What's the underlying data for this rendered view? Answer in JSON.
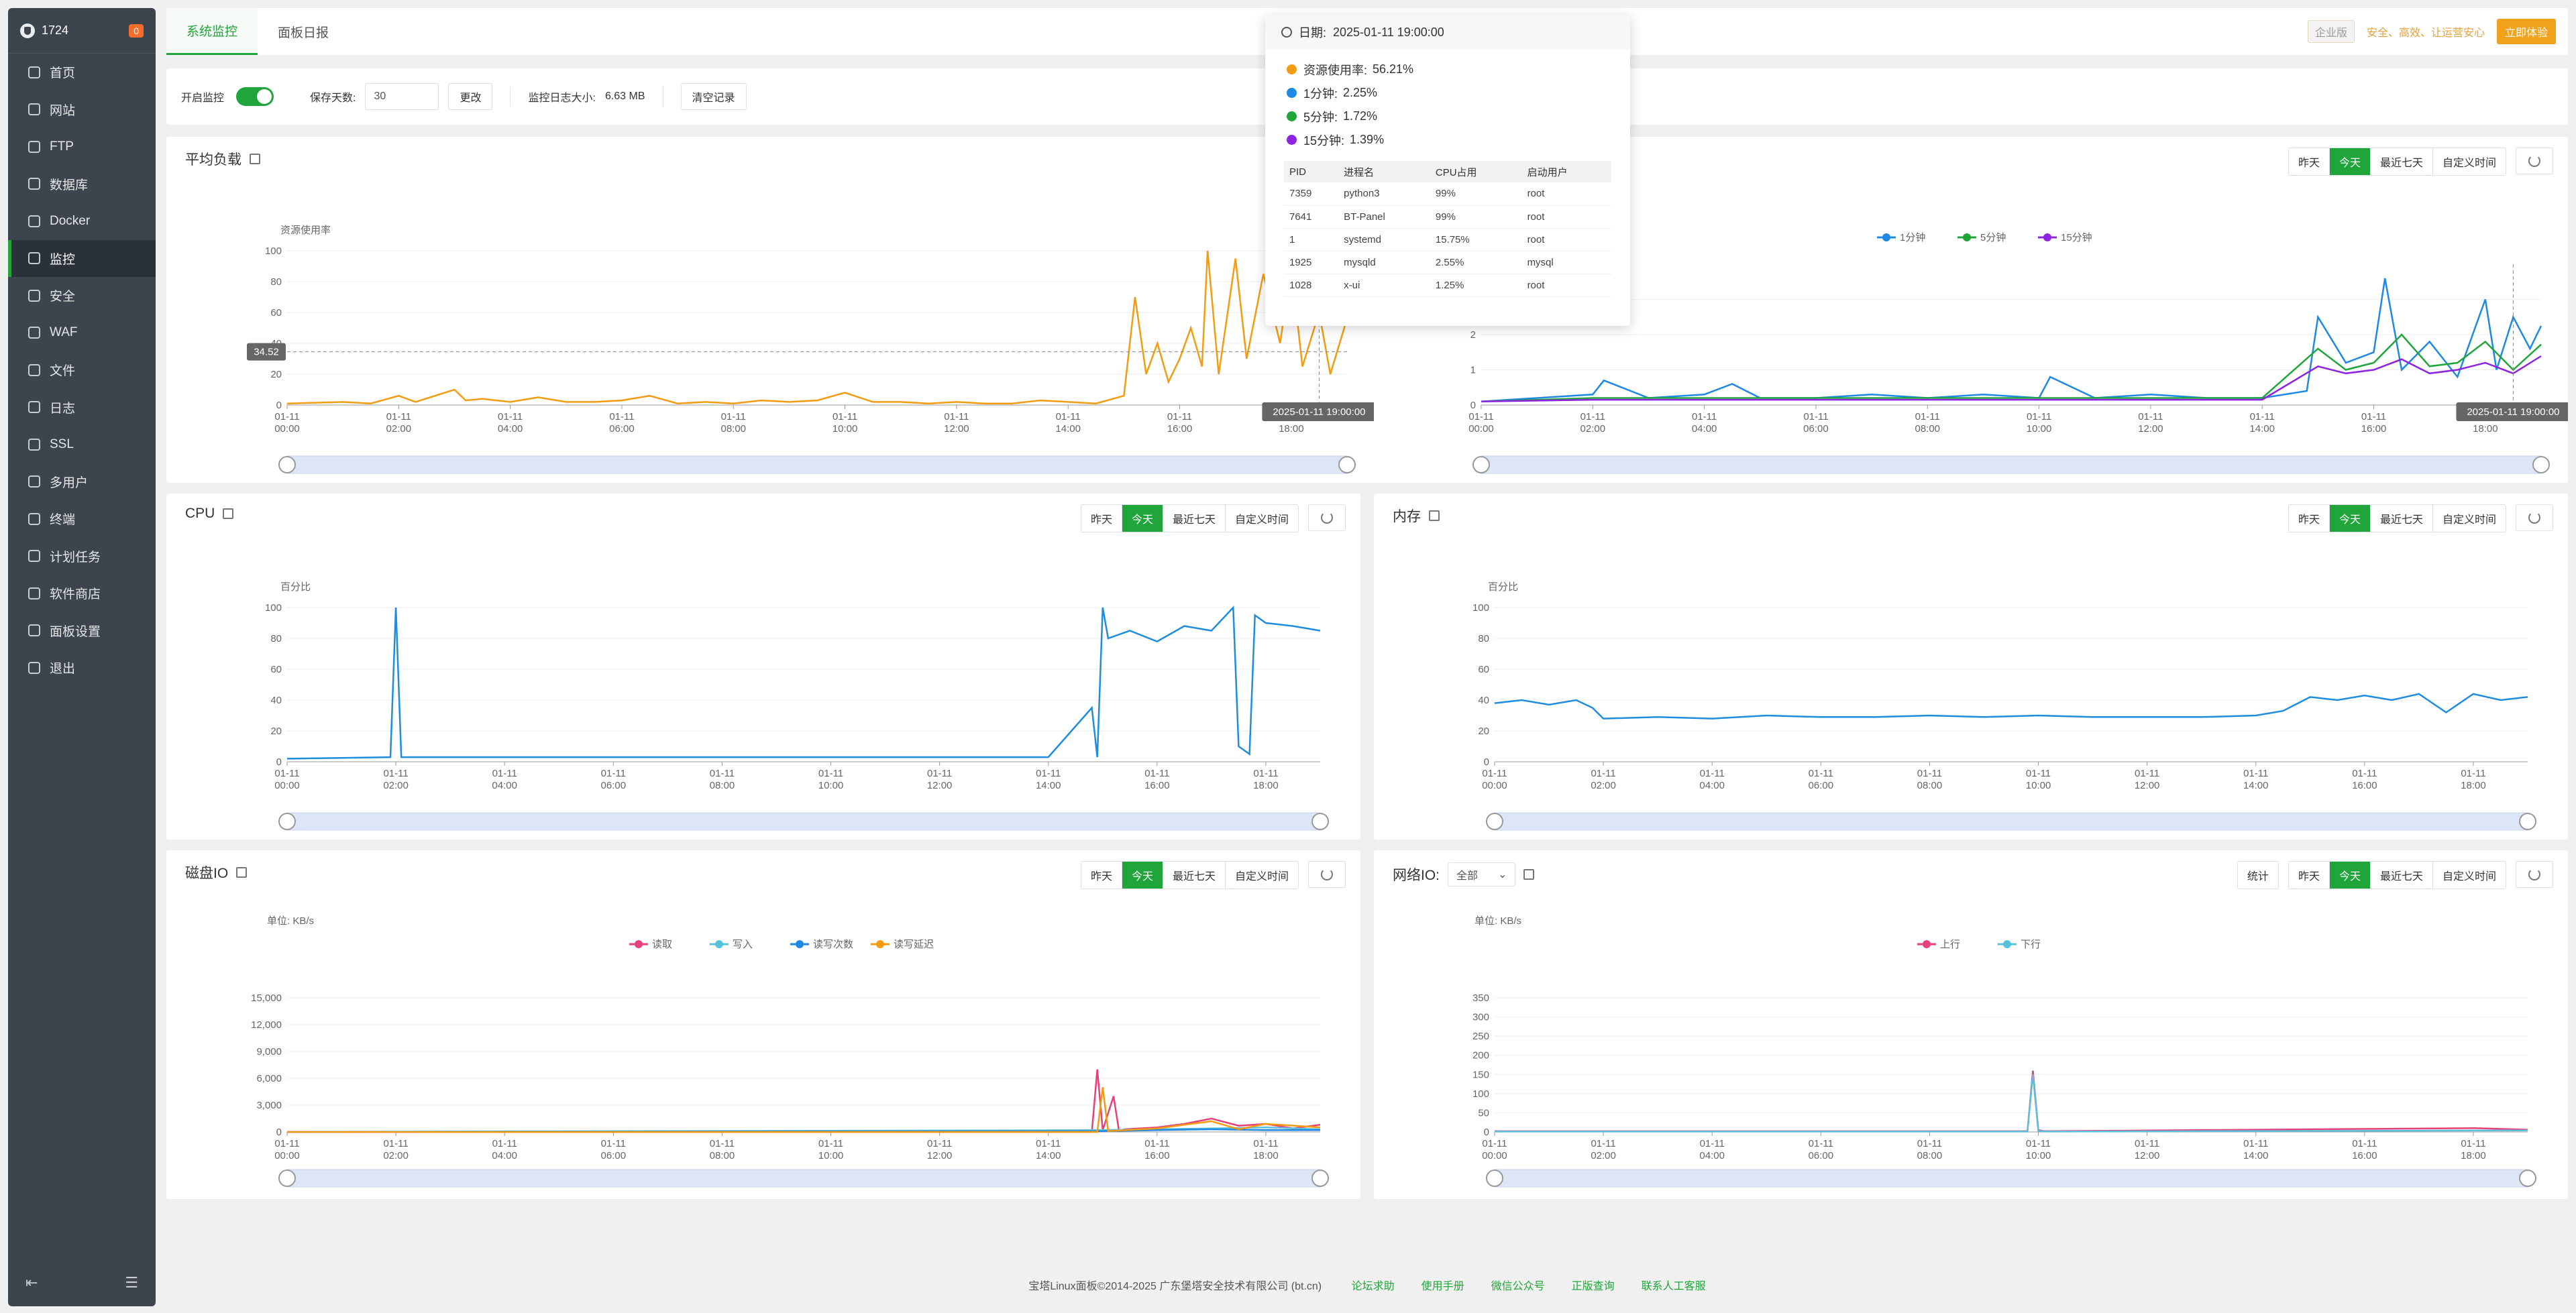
{
  "sidebar": {
    "server_count": "1724",
    "badge": "0",
    "items": [
      {
        "label": "首页"
      },
      {
        "label": "网站"
      },
      {
        "label": "FTP"
      },
      {
        "label": "数据库"
      },
      {
        "label": "Docker"
      },
      {
        "label": "监控",
        "active": true
      },
      {
        "label": "安全"
      },
      {
        "label": "WAF"
      },
      {
        "label": "文件"
      },
      {
        "label": "日志"
      },
      {
        "label": "SSL"
      },
      {
        "label": "多用户"
      },
      {
        "label": "终端"
      },
      {
        "label": "计划任务"
      },
      {
        "label": "软件商店"
      },
      {
        "label": "面板设置"
      },
      {
        "label": "退出"
      }
    ]
  },
  "header": {
    "tabs": [
      {
        "label": "系统监控"
      },
      {
        "label": "面板日报"
      }
    ],
    "enterprise": "企业版",
    "slogan": "安全、高效、让运营安心",
    "try_button": "立即体验"
  },
  "controls": {
    "enable_label": "开启监控",
    "keep_days_label": "保存天数:",
    "keep_days_value": "30",
    "change_button": "更改",
    "log_size_label": "监控日志大小:",
    "log_size_value": "6.63 MB",
    "clear_button": "清空记录"
  },
  "range_buttons": [
    "昨天",
    "今天",
    "最近七天",
    "自定义时间"
  ],
  "active_range": "今天",
  "stat_button": "统计",
  "panels": {
    "load": {
      "title": "平均负载"
    },
    "cpu": {
      "title": "CPU"
    },
    "memory": {
      "title": "内存"
    },
    "disk": {
      "title": "磁盘IO"
    },
    "network": {
      "title": "网络IO:",
      "select_value": "全部"
    }
  },
  "tooltip": {
    "date_label": "日期:",
    "date": "2025-01-11 19:00:00",
    "lines": [
      {
        "label": "资源使用率:",
        "value": "56.21%",
        "color": "#f39c12"
      },
      {
        "label": "1分钟:",
        "value": "2.25%",
        "color": "#1e88e5"
      },
      {
        "label": "5分钟:",
        "value": "1.72%",
        "color": "#20a53a"
      },
      {
        "label": "15分钟:",
        "value": "1.39%",
        "color": "#8e24e0"
      }
    ],
    "table_headers": [
      "PID",
      "进程名",
      "CPU占用",
      "启动用户"
    ],
    "processes": [
      [
        "7359",
        "python3",
        "99%",
        "root"
      ],
      [
        "7641",
        "BT-Panel",
        "99%",
        "root"
      ],
      [
        "1",
        "systemd",
        "15.75%",
        "root"
      ],
      [
        "1925",
        "mysqld",
        "2.55%",
        "mysql"
      ],
      [
        "1028",
        "x-ui",
        "1.25%",
        "root"
      ]
    ]
  },
  "footer": {
    "copyright": "宝塔Linux面板©2014-2025 广东堡塔安全技术有限公司 (bt.cn)",
    "links": [
      "论坛求助",
      "使用手册",
      "微信公众号",
      "正版查询",
      "联系人工客服"
    ]
  },
  "chart_data": [
    {
      "id": "load_resource",
      "type": "line",
      "ylabel": "资源使用率",
      "ylim": [
        0,
        100
      ],
      "yticks": [
        0,
        20,
        40,
        60,
        80,
        100
      ],
      "pointer_value": "34.52",
      "crosshair_time": "2025-01-11 19:00:00",
      "xticks": [
        "01-11 00:00",
        "01-11 02:00",
        "01-11 04:00",
        "01-11 06:00",
        "01-11 08:00",
        "01-11 10:00",
        "01-11 12:00",
        "01-11 14:00",
        "01-11 16:00",
        "01-11 18:00"
      ],
      "series": [
        {
          "color": "#f39c12",
          "x": [
            0,
            1,
            1.5,
            2,
            2.3,
            3,
            3.2,
            3.5,
            4,
            4.5,
            5,
            5.5,
            6,
            6.5,
            7,
            7.5,
            8,
            8.5,
            9,
            9.5,
            10,
            10.5,
            11,
            11.5,
            12,
            12.5,
            13,
            13.5,
            14,
            14.5,
            15,
            15.2,
            15.4,
            15.6,
            15.8,
            16,
            16.2,
            16.4,
            16.5,
            16.7,
            17,
            17.2,
            17.5,
            17.8,
            18,
            18.2,
            18.5,
            18.7,
            19
          ],
          "y": [
            1,
            2,
            1,
            6,
            2,
            10,
            3,
            4,
            2,
            5,
            2,
            2,
            3,
            6,
            1,
            2,
            1,
            3,
            2,
            3,
            8,
            2,
            2,
            1,
            2,
            1,
            1,
            3,
            2,
            1,
            6,
            70,
            20,
            40,
            15,
            30,
            50,
            25,
            100,
            20,
            95,
            30,
            85,
            40,
            90,
            25,
            60,
            20,
            56
          ]
        }
      ]
    },
    {
      "id": "load_avg",
      "type": "line",
      "legend": [
        "1分钟",
        "5分钟",
        "15分钟"
      ],
      "ylim": [
        0,
        4
      ],
      "yticks": [
        0,
        1,
        2,
        3
      ],
      "crosshair_time": "2025-01-11 19:00:00",
      "xticks": [
        "01-11 00:00",
        "01-11 02:00",
        "01-11 04:00",
        "01-11 06:00",
        "01-11 08:00",
        "01-11 10:00",
        "01-11 12:00",
        "01-11 14:00",
        "01-11 16:00",
        "01-11 18:00"
      ],
      "series": [
        {
          "name": "1分钟",
          "color": "#1e88e5",
          "x": [
            0,
            1,
            2,
            2.2,
            3,
            4,
            4.5,
            5,
            6,
            7,
            8,
            9,
            10,
            10.2,
            11,
            12,
            13,
            14,
            14.8,
            15,
            15.5,
            16,
            16.2,
            16.5,
            17,
            17.5,
            18,
            18.2,
            18.5,
            18.8,
            19
          ],
          "y": [
            0.1,
            0.2,
            0.3,
            0.7,
            0.2,
            0.3,
            0.6,
            0.2,
            0.2,
            0.3,
            0.2,
            0.3,
            0.2,
            0.8,
            0.2,
            0.3,
            0.2,
            0.2,
            0.4,
            2.5,
            1.2,
            1.5,
            3.6,
            1.0,
            1.8,
            0.8,
            3.0,
            1.0,
            2.5,
            1.6,
            2.25
          ]
        },
        {
          "name": "5分钟",
          "color": "#20a53a",
          "x": [
            0,
            2,
            4,
            6,
            8,
            10,
            12,
            14,
            15,
            15.5,
            16,
            16.5,
            17,
            17.5,
            18,
            18.5,
            19
          ],
          "y": [
            0.1,
            0.2,
            0.2,
            0.2,
            0.2,
            0.2,
            0.2,
            0.2,
            1.6,
            1.0,
            1.2,
            2.0,
            1.1,
            1.2,
            1.8,
            1.0,
            1.72
          ]
        },
        {
          "name": "15分钟",
          "color": "#8e24e0",
          "x": [
            0,
            2,
            4,
            6,
            8,
            10,
            12,
            14,
            15,
            15.5,
            16,
            16.5,
            17,
            17.5,
            18,
            18.5,
            19
          ],
          "y": [
            0.1,
            0.15,
            0.15,
            0.15,
            0.15,
            0.15,
            0.15,
            0.15,
            1.1,
            0.9,
            1.0,
            1.3,
            0.9,
            1.0,
            1.2,
            0.9,
            1.39
          ]
        }
      ]
    },
    {
      "id": "cpu",
      "type": "line",
      "ylabel": "百分比",
      "ylim": [
        0,
        100
      ],
      "yticks": [
        0,
        20,
        40,
        60,
        80,
        100
      ],
      "xticks": [
        "01-11 00:00",
        "01-11 02:00",
        "01-11 04:00",
        "01-11 06:00",
        "01-11 08:00",
        "01-11 10:00",
        "01-11 12:00",
        "01-11 14:00",
        "01-11 16:00",
        "01-11 18:00"
      ],
      "series": [
        {
          "color": "#1e8de0",
          "x": [
            0,
            1.9,
            2,
            2.1,
            3,
            4,
            5,
            6,
            7,
            8,
            9,
            10,
            11,
            12,
            13,
            14,
            14.8,
            14.9,
            15,
            15.1,
            15.5,
            16,
            16.5,
            17,
            17.4,
            17.5,
            17.7,
            17.8,
            18,
            18.5,
            19
          ],
          "y": [
            2,
            3,
            100,
            3,
            3,
            3,
            3,
            3,
            3,
            3,
            3,
            3,
            3,
            3,
            3,
            3,
            35,
            3,
            100,
            80,
            85,
            78,
            88,
            85,
            100,
            10,
            5,
            95,
            90,
            88,
            85
          ]
        }
      ]
    },
    {
      "id": "memory",
      "type": "line",
      "ylabel": "百分比",
      "ylim": [
        0,
        100
      ],
      "yticks": [
        0,
        20,
        40,
        60,
        80,
        100
      ],
      "xticks": [
        "01-11 00:00",
        "01-11 02:00",
        "01-11 04:00",
        "01-11 06:00",
        "01-11 08:00",
        "01-11 10:00",
        "01-11 12:00",
        "01-11 14:00",
        "01-11 16:00",
        "01-11 18:00"
      ],
      "series": [
        {
          "color": "#1e8de0",
          "x": [
            0,
            0.5,
            1,
            1.5,
            1.8,
            2,
            3,
            4,
            5,
            6,
            7,
            8,
            9,
            10,
            11,
            12,
            13,
            14,
            14.5,
            15,
            15.5,
            16,
            16.5,
            17,
            17.5,
            18,
            18.5,
            19
          ],
          "y": [
            38,
            40,
            37,
            40,
            35,
            28,
            29,
            28,
            30,
            29,
            29,
            30,
            29,
            30,
            29,
            29,
            29,
            30,
            33,
            42,
            40,
            43,
            40,
            44,
            32,
            44,
            40,
            42
          ]
        }
      ]
    },
    {
      "id": "disk",
      "type": "line",
      "unit": "单位: KB/s",
      "legend": [
        "读取",
        "写入",
        "读写次数",
        "读写延迟"
      ],
      "ylim": [
        0,
        15000
      ],
      "yticks": [
        "0",
        "3,000",
        "6,000",
        "9,000",
        "12,000",
        "15,000"
      ],
      "xticks": [
        "01-11 00:00",
        "01-11 02:00",
        "01-11 04:00",
        "01-11 06:00",
        "01-11 08:00",
        "01-11 10:00",
        "01-11 12:00",
        "01-11 14:00",
        "01-11 16:00",
        "01-11 18:00"
      ],
      "series": [
        {
          "name": "读取",
          "color": "#e8407a",
          "x": [
            0,
            14.8,
            14.9,
            15,
            15.2,
            15.3,
            15.4,
            16,
            16.5,
            17,
            17.5,
            18,
            18.5,
            19
          ],
          "y": [
            0,
            0,
            7000,
            200,
            4000,
            100,
            300,
            500,
            900,
            1500,
            700,
            900,
            400,
            800
          ]
        },
        {
          "name": "写入",
          "color": "#5bc0de",
          "x": [
            0,
            15,
            16,
            17,
            18,
            19
          ],
          "y": [
            0,
            200,
            300,
            400,
            500,
            300
          ]
        },
        {
          "name": "读写次数",
          "color": "#1e88e5",
          "x": [
            0,
            15,
            16,
            17,
            18,
            19
          ],
          "y": [
            0,
            100,
            200,
            300,
            200,
            200
          ]
        },
        {
          "name": "读写延迟",
          "color": "#f39c12",
          "x": [
            0,
            14.9,
            15,
            15.1,
            16,
            17,
            17.5,
            18,
            19
          ],
          "y": [
            0,
            0,
            5000,
            100,
            400,
            1200,
            300,
            900,
            500
          ]
        }
      ]
    },
    {
      "id": "network",
      "type": "line",
      "unit": "单位: KB/s",
      "legend": [
        "上行",
        "下行"
      ],
      "ylim": [
        0,
        350
      ],
      "yticks": [
        0,
        50,
        100,
        150,
        200,
        250,
        300,
        350
      ],
      "xticks": [
        "01-11 00:00",
        "01-11 02:00",
        "01-11 04:00",
        "01-11 06:00",
        "01-11 08:00",
        "01-11 10:00",
        "01-11 12:00",
        "01-11 14:00",
        "01-11 16:00",
        "01-11 18:00"
      ],
      "series": [
        {
          "name": "上行",
          "color": "#e8407a",
          "x": [
            0,
            9.8,
            9.9,
            10,
            10.1,
            18,
            19
          ],
          "y": [
            2,
            2,
            160,
            5,
            2,
            10,
            6
          ]
        },
        {
          "name": "下行",
          "color": "#5bc0de",
          "x": [
            0,
            9.8,
            9.9,
            10,
            10.1,
            19
          ],
          "y": [
            1,
            1,
            150,
            3,
            1,
            4
          ]
        }
      ]
    }
  ]
}
